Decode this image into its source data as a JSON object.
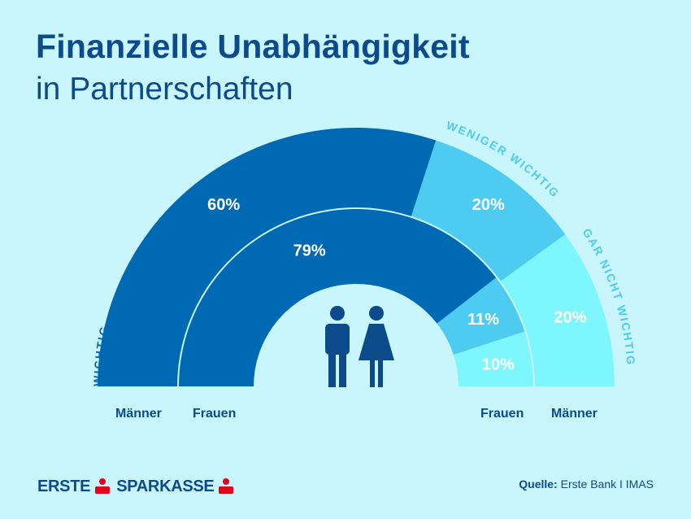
{
  "header": {
    "title": "Finanzielle Unabhängigkeit",
    "subtitle": "in Partnerschaften"
  },
  "chart_data": {
    "type": "semi-donut",
    "categories": [
      "wichtig",
      "weniger wichtig",
      "gar nicht wichtig"
    ],
    "category_labels": [
      "WICHTIG",
      "WENIGER WICHTIG",
      "GAR NICHT WICHTIG"
    ],
    "series": [
      {
        "name": "Männer",
        "values": [
          60,
          20,
          20
        ]
      },
      {
        "name": "Frauen",
        "values": [
          79,
          11,
          10
        ]
      }
    ],
    "value_labels": {
      "Männer": [
        "60%",
        "20%",
        "20%"
      ],
      "Frauen": [
        "79%",
        "11%",
        "10%"
      ]
    },
    "colors": [
      "#0069b4",
      "#4ecbf0",
      "#7ef6fd"
    ]
  },
  "bottom_labels": {
    "left_outer": "Männer",
    "left_inner": "Frauen",
    "right_inner": "Frauen",
    "right_outer": "Männer"
  },
  "footer": {
    "logo_left": "ERSTE",
    "logo_right": "SPARKASSE",
    "source_label": "Quelle:",
    "source_text": "Erste Bank I IMAS"
  },
  "icons": [
    "man-icon",
    "woman-icon",
    "sparkasse-s-icon"
  ]
}
